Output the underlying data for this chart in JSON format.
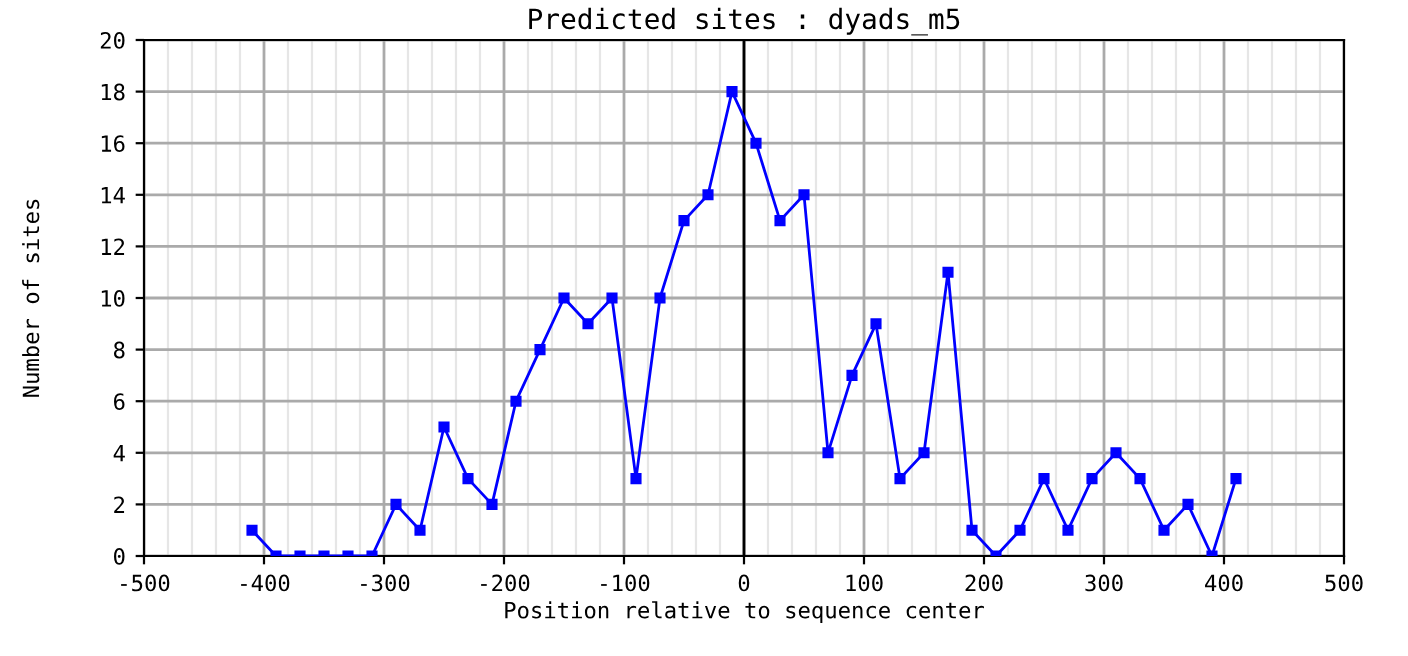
{
  "chart_data": {
    "type": "line",
    "title": "Predicted sites : dyads_m5",
    "xlabel": "Position relative to sequence center",
    "ylabel": "Number of sites",
    "series": [
      {
        "color": "#0000ff",
        "x": [
          -410,
          -390,
          -370,
          -350,
          -330,
          -310,
          -290,
          -270,
          -250,
          -230,
          -210,
          -190,
          -170,
          -150,
          -130,
          -110,
          -90,
          -70,
          -50,
          -30,
          -10,
          10,
          30,
          50,
          70,
          90,
          110,
          130,
          150,
          170,
          190,
          210,
          230,
          250,
          270,
          290,
          310,
          330,
          350,
          370,
          390,
          410
        ],
        "values": [
          1,
          0,
          0,
          0,
          0,
          0,
          2,
          1,
          5,
          3,
          2,
          6,
          8,
          10,
          9,
          10,
          3,
          10,
          13,
          14,
          18,
          16,
          13,
          14,
          4,
          7,
          9,
          3,
          4,
          11,
          1,
          0,
          1,
          3,
          1,
          3,
          4,
          3,
          1,
          2,
          0,
          3
        ]
      }
    ],
    "xlim": [
      -500,
      500
    ],
    "xticks": [
      -500,
      -400,
      -300,
      -200,
      -100,
      0,
      100,
      200,
      300,
      400,
      500
    ],
    "ylim": [
      0,
      20
    ],
    "yticks": [
      0,
      2,
      4,
      6,
      8,
      10,
      12,
      14,
      16,
      18,
      20
    ],
    "grid": true,
    "marker": "square",
    "line_style": "solid",
    "legend": false,
    "ref_lines": [
      {
        "axis": "x",
        "value": 0,
        "color": "#000000"
      }
    ]
  }
}
